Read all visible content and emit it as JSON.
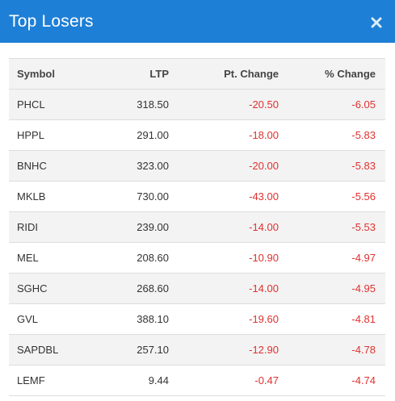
{
  "header": {
    "title": "Top Losers",
    "close_icon": "close-icon"
  },
  "colors": {
    "header_bg": "#1e7fd6",
    "negative": "#e0312f",
    "row_alt": "#f3f3f3"
  },
  "table": {
    "columns": [
      "Symbol",
      "LTP",
      "Pt. Change",
      "% Change"
    ],
    "rows": [
      {
        "symbol": "PHCL",
        "ltp": "318.50",
        "pt_change": "-20.50",
        "pct_change": "-6.05"
      },
      {
        "symbol": "HPPL",
        "ltp": "291.00",
        "pt_change": "-18.00",
        "pct_change": "-5.83"
      },
      {
        "symbol": "BNHC",
        "ltp": "323.00",
        "pt_change": "-20.00",
        "pct_change": "-5.83"
      },
      {
        "symbol": "MKLB",
        "ltp": "730.00",
        "pt_change": "-43.00",
        "pct_change": "-5.56"
      },
      {
        "symbol": "RIDI",
        "ltp": "239.00",
        "pt_change": "-14.00",
        "pct_change": "-5.53"
      },
      {
        "symbol": "MEL",
        "ltp": "208.60",
        "pt_change": "-10.90",
        "pct_change": "-4.97"
      },
      {
        "symbol": "SGHC",
        "ltp": "268.60",
        "pt_change": "-14.00",
        "pct_change": "-4.95"
      },
      {
        "symbol": "GVL",
        "ltp": "388.10",
        "pt_change": "-19.60",
        "pct_change": "-4.81"
      },
      {
        "symbol": "SAPDBL",
        "ltp": "257.10",
        "pt_change": "-12.90",
        "pct_change": "-4.78"
      },
      {
        "symbol": "LEMF",
        "ltp": "9.44",
        "pt_change": "-0.47",
        "pct_change": "-4.74"
      }
    ]
  }
}
